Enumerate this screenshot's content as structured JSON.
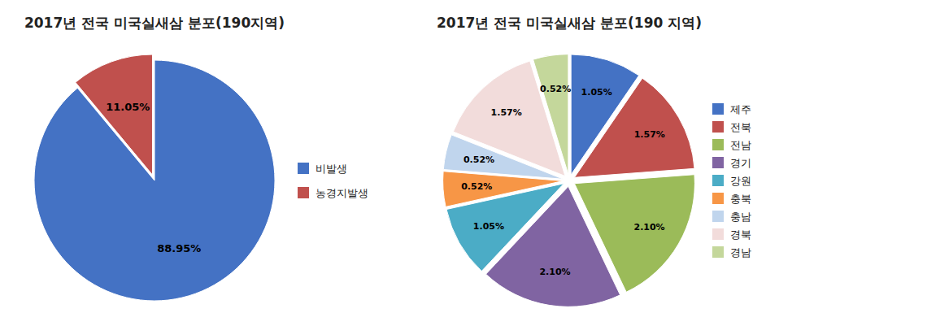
{
  "chart_data": [
    {
      "type": "pie",
      "title": "2017년 전국 미국실새삼 분포(190지역)",
      "categories": [
        "비발생",
        "농경지발생"
      ],
      "values": [
        88.95,
        11.05
      ],
      "value_labels": [
        "88.95%",
        "11.05%"
      ],
      "colors": [
        "#4472C4",
        "#C0504D"
      ],
      "data_labels": true,
      "legend": "right"
    },
    {
      "type": "pie",
      "title": "2017년 전국 미국실새삼 분포(190 지역)",
      "categories": [
        "제주",
        "전북",
        "전남",
        "경기",
        "강원",
        "충북",
        "충남",
        "경북",
        "경남"
      ],
      "values": [
        1.05,
        1.57,
        2.1,
        2.1,
        1.05,
        0.52,
        0.52,
        1.57,
        0.52
      ],
      "value_labels": [
        "1.05%",
        "1.57%",
        "2.10%",
        "2.10%",
        "1.05%",
        "0.52%",
        "0.52%",
        "1.57%",
        "0.52%"
      ],
      "colors": [
        "#4472C4",
        "#C0504D",
        "#9BBB59",
        "#8064A2",
        "#4BACC6",
        "#F79646",
        "#C0D5ED",
        "#F2DCDB",
        "#C4D79B"
      ],
      "data_labels": true,
      "legend": "right"
    }
  ]
}
